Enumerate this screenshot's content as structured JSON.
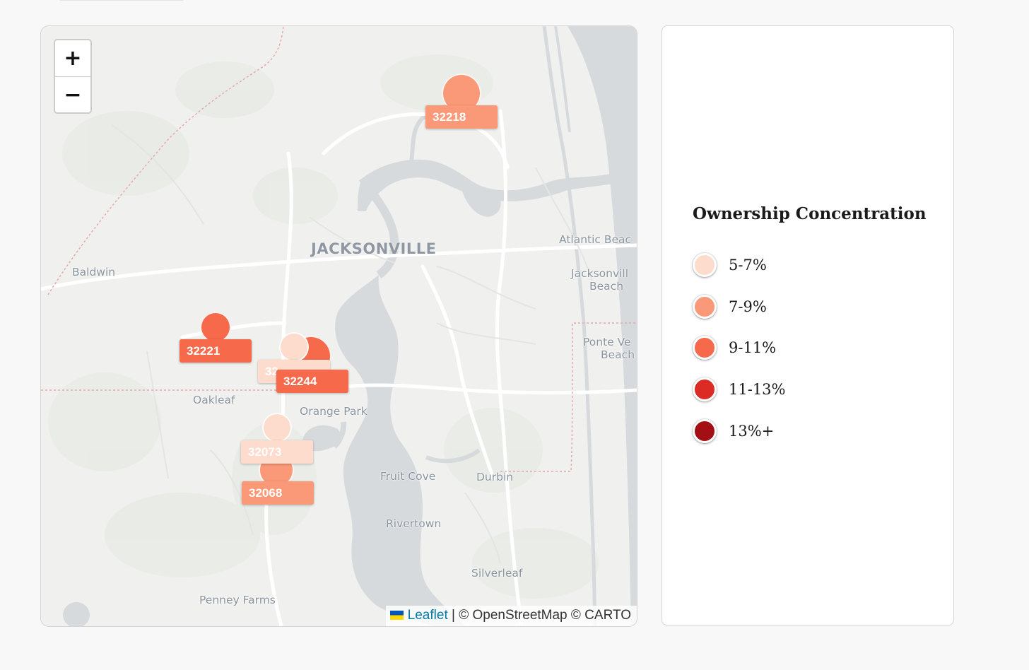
{
  "map": {
    "zoom_in_label": "+",
    "zoom_out_label": "−",
    "city_label": "JACKSONVILLE",
    "places": {
      "baldwin": "Baldwin",
      "oakleaf": "Oakleaf",
      "orange_park": "Orange Park",
      "fruit_cove": "Fruit Cove",
      "durbin": "Durbin",
      "rivertown": "Rivertown",
      "silverleaf": "Silverleaf",
      "penney_farms": "Penney Farms",
      "atlantic_beach": "Atlantic Beac",
      "jacksonville_beach_1": "Jacksonvill",
      "jacksonville_beach_2": "Beach",
      "ponte_vedra_1": "Ponte Ve",
      "ponte_vedra_2": "Beach"
    },
    "markers": [
      {
        "zip": "32218",
        "range": "7-9%",
        "color": "#f99977"
      },
      {
        "zip": "32221",
        "range": "9-11%",
        "color": "#f6694b"
      },
      {
        "zip": "32244",
        "range": "9-11%",
        "color": "#f6694b"
      },
      {
        "zip": "32073",
        "range": "5-7%",
        "color": "#fddccd"
      },
      {
        "zip": "32068",
        "range": "7-9%",
        "color": "#f99977"
      }
    ],
    "hidden_label_fragment": "32",
    "attribution": {
      "leaflet": "Leaflet",
      "rest": "| © OpenStreetMap © CARTO"
    }
  },
  "legend": {
    "title": "Ownership Concentration",
    "items": [
      {
        "label": "5-7%",
        "color": "#fddccd"
      },
      {
        "label": "7-9%",
        "color": "#f99977"
      },
      {
        "label": "9-11%",
        "color": "#f6694b"
      },
      {
        "label": "11-13%",
        "color": "#dc2a25"
      },
      {
        "label": "13%+",
        "color": "#a30f15"
      }
    ]
  }
}
